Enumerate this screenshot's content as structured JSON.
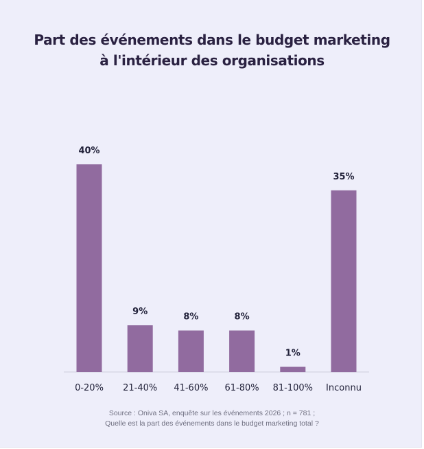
{
  "title": {
    "line1": "Part des événements dans le budget marketing",
    "line2": "à l'intérieur des organisations"
  },
  "chart_data": {
    "type": "bar",
    "title": "Part des événements dans le budget marketing à l'intérieur des organisations",
    "categories": [
      "0-20%",
      "21-40%",
      "41-60%",
      "61-80%",
      "81-100%",
      "Inconnu"
    ],
    "values": [
      40,
      9,
      8,
      8,
      1,
      35
    ],
    "data_labels": [
      "40%",
      "9%",
      "8%",
      "8%",
      "1%",
      "35%"
    ],
    "xlabel": "",
    "ylabel": "",
    "ylim": [
      0,
      40
    ],
    "grid": false,
    "legend": "none",
    "bar_color": "#916b9f"
  },
  "source": {
    "line1": "Source : Oniva SA, enquête sur les événements 2026 ; n = 781 ;",
    "line2": "Quelle est la part des événements dans le budget marketing total ?"
  },
  "colors": {
    "background": "#eeeefa",
    "title": "#2a2141",
    "bar": "#916b9f",
    "labels": "#22223a",
    "axis": "#cfcfdc",
    "source_text": "#6f6f80"
  }
}
